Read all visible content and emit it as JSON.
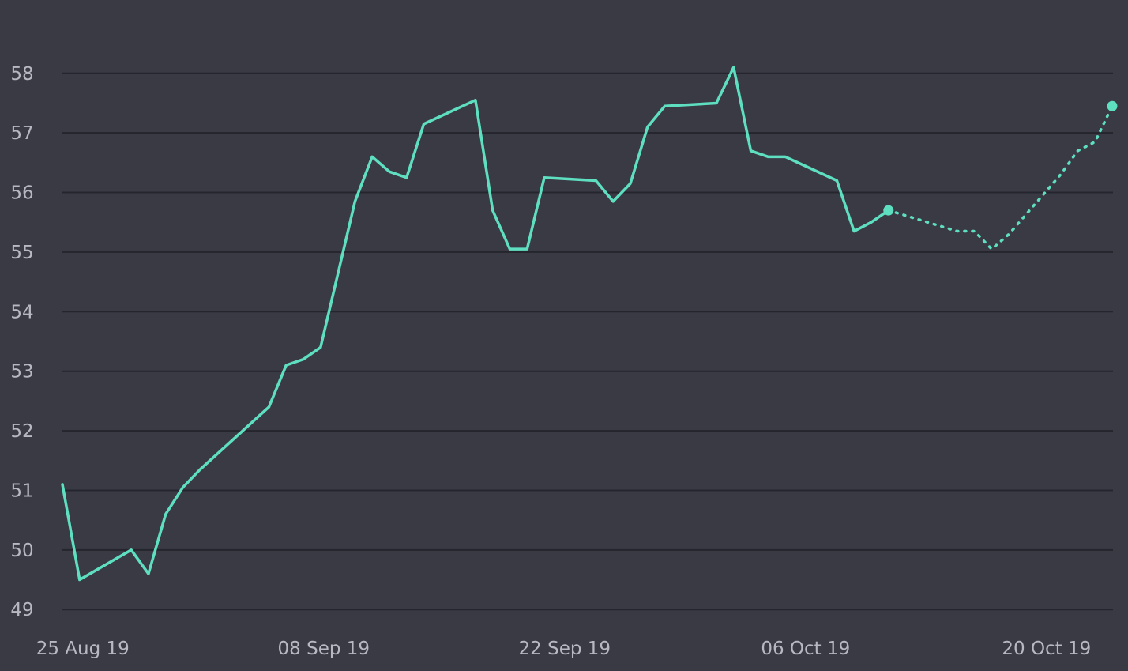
{
  "chart_data": {
    "type": "line",
    "title": "",
    "xlabel": "",
    "ylabel": "",
    "ylim": [
      49,
      58
    ],
    "xlim": [
      "2019-08-24",
      "2019-10-24"
    ],
    "grid": true,
    "legend": "none",
    "y_ticks": [
      "49",
      "50",
      "51",
      "52",
      "53",
      "54",
      "55",
      "56",
      "57",
      "58"
    ],
    "x_ticks": [
      {
        "date": "2019-08-25",
        "label": "25 Aug 19"
      },
      {
        "date": "2019-09-08",
        "label": "08 Sep 19"
      },
      {
        "date": "2019-09-22",
        "label": "22 Sep 19"
      },
      {
        "date": "2019-10-06",
        "label": "06 Oct 19"
      },
      {
        "date": "2019-10-20",
        "label": "20 Oct 19"
      }
    ],
    "colors": {
      "background": "#3a3a45",
      "line": "#5ee0c0",
      "grid": "#25252e",
      "tick_label": "#b8b8c2"
    },
    "series": [
      {
        "style": "solid",
        "end_marker": true,
        "points": [
          {
            "x": "2019-08-24",
            "y": 51.1
          },
          {
            "x": "2019-08-25",
            "y": 49.5
          },
          {
            "x": "2019-08-28",
            "y": 50.0
          },
          {
            "x": "2019-08-29",
            "y": 49.6
          },
          {
            "x": "2019-08-30",
            "y": 50.6
          },
          {
            "x": "2019-08-31",
            "y": 51.05
          },
          {
            "x": "2019-09-01",
            "y": 51.35
          },
          {
            "x": "2019-09-05",
            "y": 52.4
          },
          {
            "x": "2019-09-06",
            "y": 53.1
          },
          {
            "x": "2019-09-07",
            "y": 53.2
          },
          {
            "x": "2019-09-08",
            "y": 53.4
          },
          {
            "x": "2019-09-10",
            "y": 55.85
          },
          {
            "x": "2019-09-11",
            "y": 56.6
          },
          {
            "x": "2019-09-12",
            "y": 56.35
          },
          {
            "x": "2019-09-13",
            "y": 56.25
          },
          {
            "x": "2019-09-14",
            "y": 57.15
          },
          {
            "x": "2019-09-17",
            "y": 57.55
          },
          {
            "x": "2019-09-18",
            "y": 55.7
          },
          {
            "x": "2019-09-19",
            "y": 55.05
          },
          {
            "x": "2019-09-20",
            "y": 55.05
          },
          {
            "x": "2019-09-21",
            "y": 56.25
          },
          {
            "x": "2019-09-24",
            "y": 56.2
          },
          {
            "x": "2019-09-25",
            "y": 55.85
          },
          {
            "x": "2019-09-26",
            "y": 56.15
          },
          {
            "x": "2019-09-27",
            "y": 57.1
          },
          {
            "x": "2019-09-28",
            "y": 57.45
          },
          {
            "x": "2019-10-01",
            "y": 57.5
          },
          {
            "x": "2019-10-02",
            "y": 58.1
          },
          {
            "x": "2019-10-03",
            "y": 56.7
          },
          {
            "x": "2019-10-04",
            "y": 56.6
          },
          {
            "x": "2019-10-05",
            "y": 56.6
          },
          {
            "x": "2019-10-08",
            "y": 56.2
          },
          {
            "x": "2019-10-09",
            "y": 55.35
          },
          {
            "x": "2019-10-10",
            "y": 55.5
          },
          {
            "x": "2019-10-11",
            "y": 55.7
          }
        ]
      },
      {
        "style": "dotted",
        "end_marker": true,
        "points": [
          {
            "x": "2019-10-11",
            "y": 55.7
          },
          {
            "x": "2019-10-15",
            "y": 55.35
          },
          {
            "x": "2019-10-16",
            "y": 55.35
          },
          {
            "x": "2019-10-17",
            "y": 55.05
          },
          {
            "x": "2019-10-18",
            "y": 55.3
          },
          {
            "x": "2019-10-21",
            "y": 56.3
          },
          {
            "x": "2019-10-22",
            "y": 56.7
          },
          {
            "x": "2019-10-23",
            "y": 56.85
          },
          {
            "x": "2019-10-24",
            "y": 57.45
          }
        ]
      }
    ]
  }
}
